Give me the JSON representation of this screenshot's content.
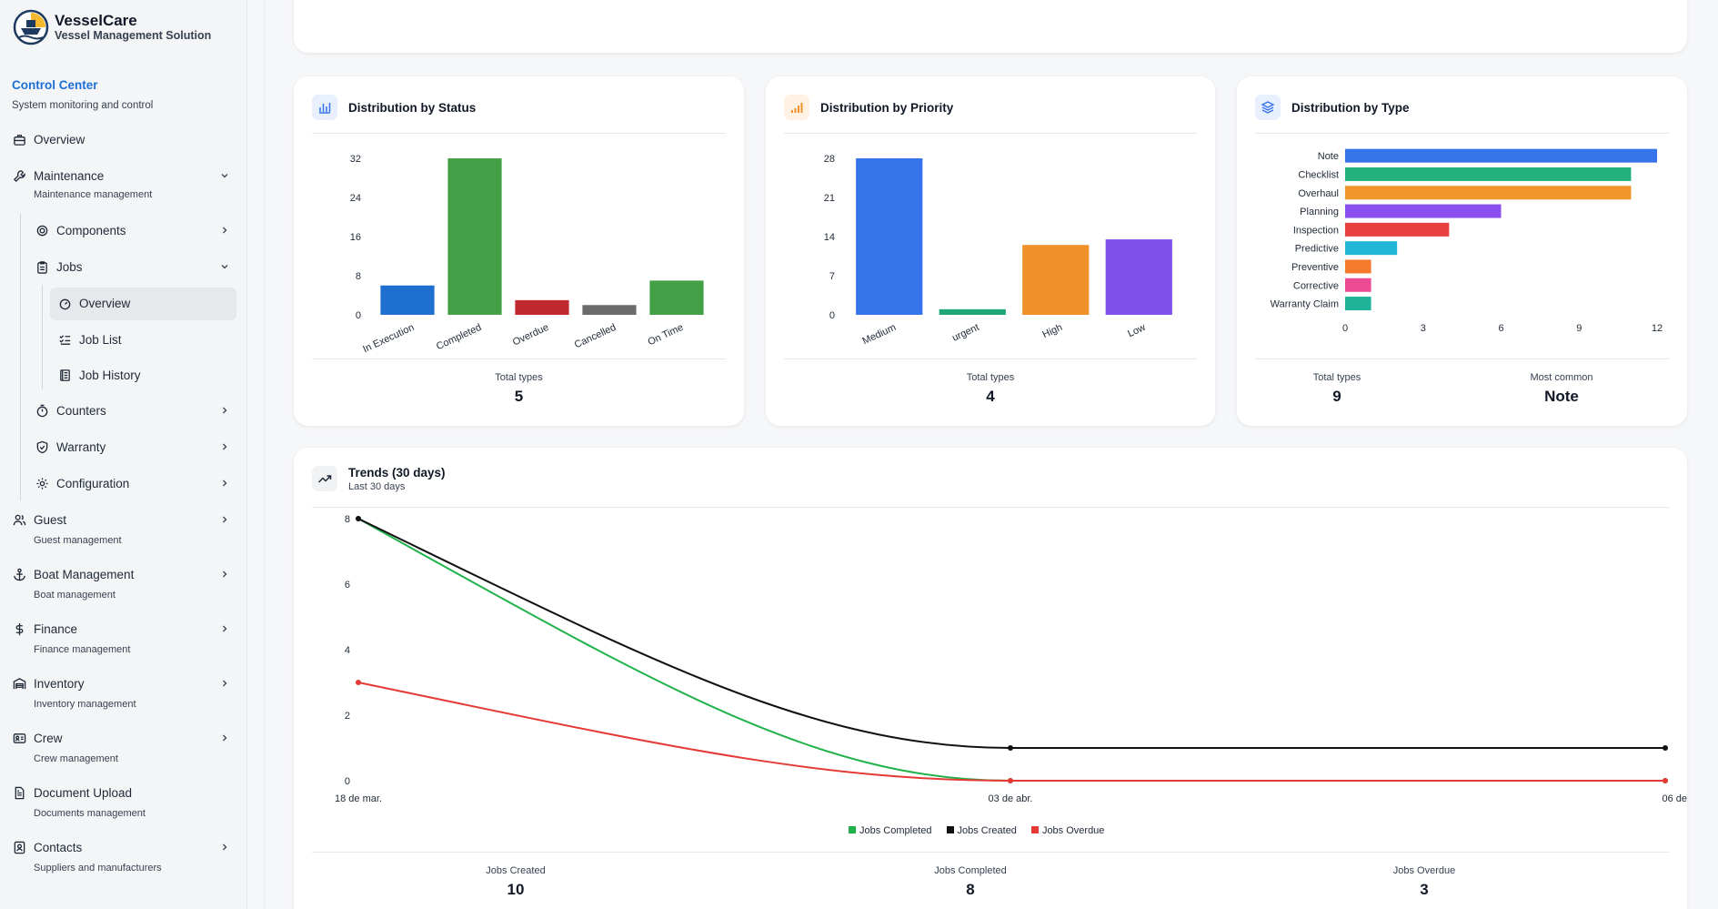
{
  "brand": {
    "title": "VesselCare",
    "subtitle": "Vessel Management Solution"
  },
  "control_center": {
    "title": "Control Center",
    "subtitle": "System monitoring and control"
  },
  "nav": {
    "overview": "Overview",
    "maintenance": {
      "label": "Maintenance",
      "sub": "Maintenance management"
    },
    "components": "Components",
    "jobs": "Jobs",
    "jobs_overview": "Overview",
    "job_list": "Job List",
    "job_history": "Job History",
    "counters": "Counters",
    "warranty": "Warranty",
    "configuration": "Configuration",
    "guest": {
      "label": "Guest",
      "sub": "Guest management"
    },
    "boat": {
      "label": "Boat Management",
      "sub": "Boat management"
    },
    "finance": {
      "label": "Finance",
      "sub": "Finance management"
    },
    "inventory": {
      "label": "Inventory",
      "sub": "Inventory management"
    },
    "crew": {
      "label": "Crew",
      "sub": "Crew management"
    },
    "docs": {
      "label": "Document Upload",
      "sub": "Documents management"
    },
    "contacts": {
      "label": "Contacts",
      "sub": "Suppliers and manufacturers"
    }
  },
  "status_card": {
    "title": "Distribution by Status",
    "total_label": "Total types",
    "total_value": "5"
  },
  "priority_card": {
    "title": "Distribution by Priority",
    "total_label": "Total types",
    "total_value": "4"
  },
  "type_card": {
    "title": "Distribution by Type",
    "total_label": "Total types",
    "total_value": "9",
    "common_label": "Most common",
    "common_value": "Note"
  },
  "trends_card": {
    "title": "Trends (30 days)",
    "subtitle": "Last 30 days",
    "stats": [
      {
        "label": "Jobs Created",
        "value": "10"
      },
      {
        "label": "Jobs Completed",
        "value": "8"
      },
      {
        "label": "Jobs Overdue",
        "value": "3"
      }
    ]
  },
  "chart_data": [
    {
      "type": "bar",
      "categories": [
        "In Execution",
        "Completed",
        "Overdue",
        "Cancelled",
        "On Time"
      ],
      "values": [
        6,
        32,
        3,
        2,
        7
      ],
      "colors": [
        "#1f6fd1",
        "#43a047",
        "#c0282f",
        "#6b6b6b",
        "#43a047"
      ],
      "yticks": [
        0,
        8,
        16,
        24,
        32
      ],
      "ylim": [
        0,
        32
      ]
    },
    {
      "type": "bar",
      "categories": [
        "Medium",
        "urgent",
        "High",
        "Low"
      ],
      "values": [
        28,
        1,
        12.5,
        13.5
      ],
      "colors": [
        "#3574eb",
        "#1fa57a",
        "#f0912a",
        "#8250ea"
      ],
      "yticks": [
        0,
        7,
        14,
        21,
        28
      ],
      "ylim": [
        0,
        28
      ]
    },
    {
      "type": "bar",
      "orientation": "horizontal",
      "categories": [
        "Note",
        "Checklist",
        "Overhaul",
        "Planning",
        "Inspection",
        "Predictive",
        "Preventive",
        "Corrective",
        "Warranty Claim"
      ],
      "values": [
        12,
        11,
        11,
        6,
        4,
        2,
        1,
        1,
        1
      ],
      "colors": [
        "#3574eb",
        "#22b07d",
        "#f0952a",
        "#8b4ff0",
        "#ea3f3f",
        "#22b6d8",
        "#f47a2c",
        "#ec4a93",
        "#1fb39a"
      ],
      "xticks": [
        0,
        3,
        6,
        9,
        12
      ],
      "xlim": [
        0,
        12
      ]
    },
    {
      "type": "line",
      "x": [
        "18 de mar.",
        "03 de abr.",
        "06 de"
      ],
      "yticks": [
        0,
        2,
        4,
        6,
        8
      ],
      "ylim": [
        0,
        8
      ],
      "series": [
        {
          "name": "Jobs Completed",
          "color": "#22b24c",
          "values": [
            8,
            0,
            0
          ]
        },
        {
          "name": "Jobs Created",
          "color": "#111111",
          "values": [
            8,
            1,
            1
          ]
        },
        {
          "name": "Jobs Overdue",
          "color": "#e53935",
          "values": [
            3,
            0,
            0
          ]
        }
      ]
    }
  ]
}
